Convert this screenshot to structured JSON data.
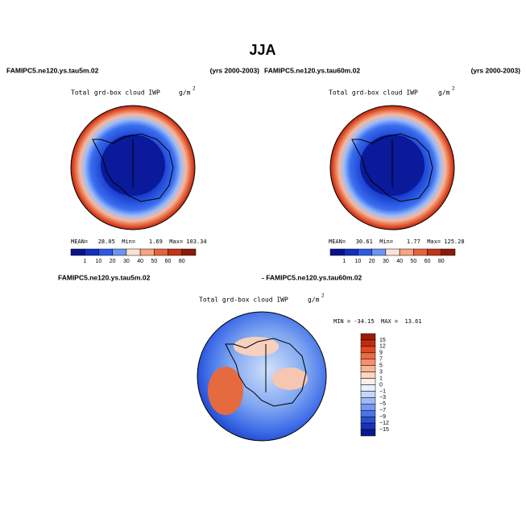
{
  "title": "JJA",
  "panels": [
    {
      "case": "FAMIPC5.ne120.ys.tau5m.02",
      "years": "(yrs 2000-2003)",
      "variable": "Total grd-box cloud IWP",
      "units": "g/m",
      "units_exponent": "2",
      "stats": "MEAN=   28.05  Min=    1.69  Max= 103.34",
      "colorbar": [
        "1",
        "10",
        "20",
        "30",
        "40",
        "50",
        "60",
        "80"
      ]
    },
    {
      "case": "FAMIPC5.ne120.ys.tau60m.02",
      "years": "(yrs 2000-2003)",
      "variable": "Total grd-box cloud IWP",
      "units": "g/m",
      "units_exponent": "2",
      "stats": "MEAN=   30.61  Min=    1.77  Max= 125.28",
      "colorbar": [
        "1",
        "10",
        "20",
        "30",
        "40",
        "50",
        "60",
        "80"
      ]
    }
  ],
  "difference": {
    "case_a": "FAMIPC5.ne120.ys.tau5m.02",
    "case_b": "- FAMIPC5.ne120.ys.tau60m.02",
    "variable": "Total grd-box cloud IWP",
    "units": "g/m",
    "units_exponent": "2",
    "stats": "MIN = -34.15  MAX =  13.61",
    "colorbar": [
      "15",
      "12",
      "9",
      "7",
      "5",
      "3",
      "1",
      "0",
      "−1",
      "−3",
      "−5",
      "−7",
      "−9",
      "−12",
      "−15"
    ]
  }
}
